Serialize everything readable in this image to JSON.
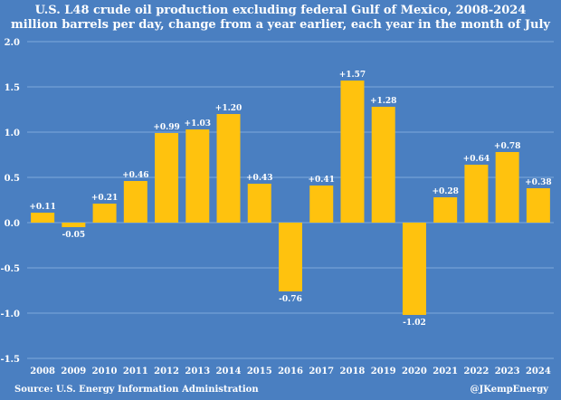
{
  "colors": {
    "background": "#4a7fc1",
    "bar": "#ffc20e",
    "grid": "#7fa8da",
    "text": "#ffffff"
  },
  "chart_data": {
    "type": "bar",
    "title": "U.S. L48 crude oil production excluding federal Gulf of Mexico, 2008-2024",
    "subtitle": "million barrels per day, change from a year earlier, each year in the month of July",
    "categories": [
      "2008",
      "2009",
      "2010",
      "2011",
      "2012",
      "2013",
      "2014",
      "2015",
      "2016",
      "2017",
      "2018",
      "2019",
      "2020",
      "2021",
      "2022",
      "2023",
      "2024"
    ],
    "values": [
      0.11,
      -0.05,
      0.21,
      0.46,
      0.99,
      1.03,
      1.2,
      0.43,
      -0.76,
      0.41,
      1.57,
      1.28,
      -1.02,
      0.28,
      0.64,
      0.78,
      0.38
    ],
    "data_labels": [
      "+0.11",
      "-0.05",
      "+0.21",
      "+0.46",
      "+0.99",
      "+1.03",
      "+1.20",
      "+0.43",
      "-0.76",
      "+0.41",
      "+1.57",
      "+1.28",
      "-1.02",
      "+0.28",
      "+0.64",
      "+0.78",
      "+0.38"
    ],
    "y_ticks": [
      2.0,
      1.5,
      1.0,
      0.5,
      0.0,
      -0.5,
      -1.0,
      -1.5
    ],
    "y_tick_labels": [
      "2.0",
      "1.5",
      "1.0",
      "0.5",
      "0.0",
      "-0.5",
      "-1.0",
      "-1.5"
    ],
    "ylim": [
      -1.5,
      2.0
    ],
    "grid": true,
    "xlabel": "",
    "ylabel": ""
  },
  "footer": {
    "source": "Source: U.S. Energy Information Administration",
    "credit": "@JKempEnergy"
  }
}
